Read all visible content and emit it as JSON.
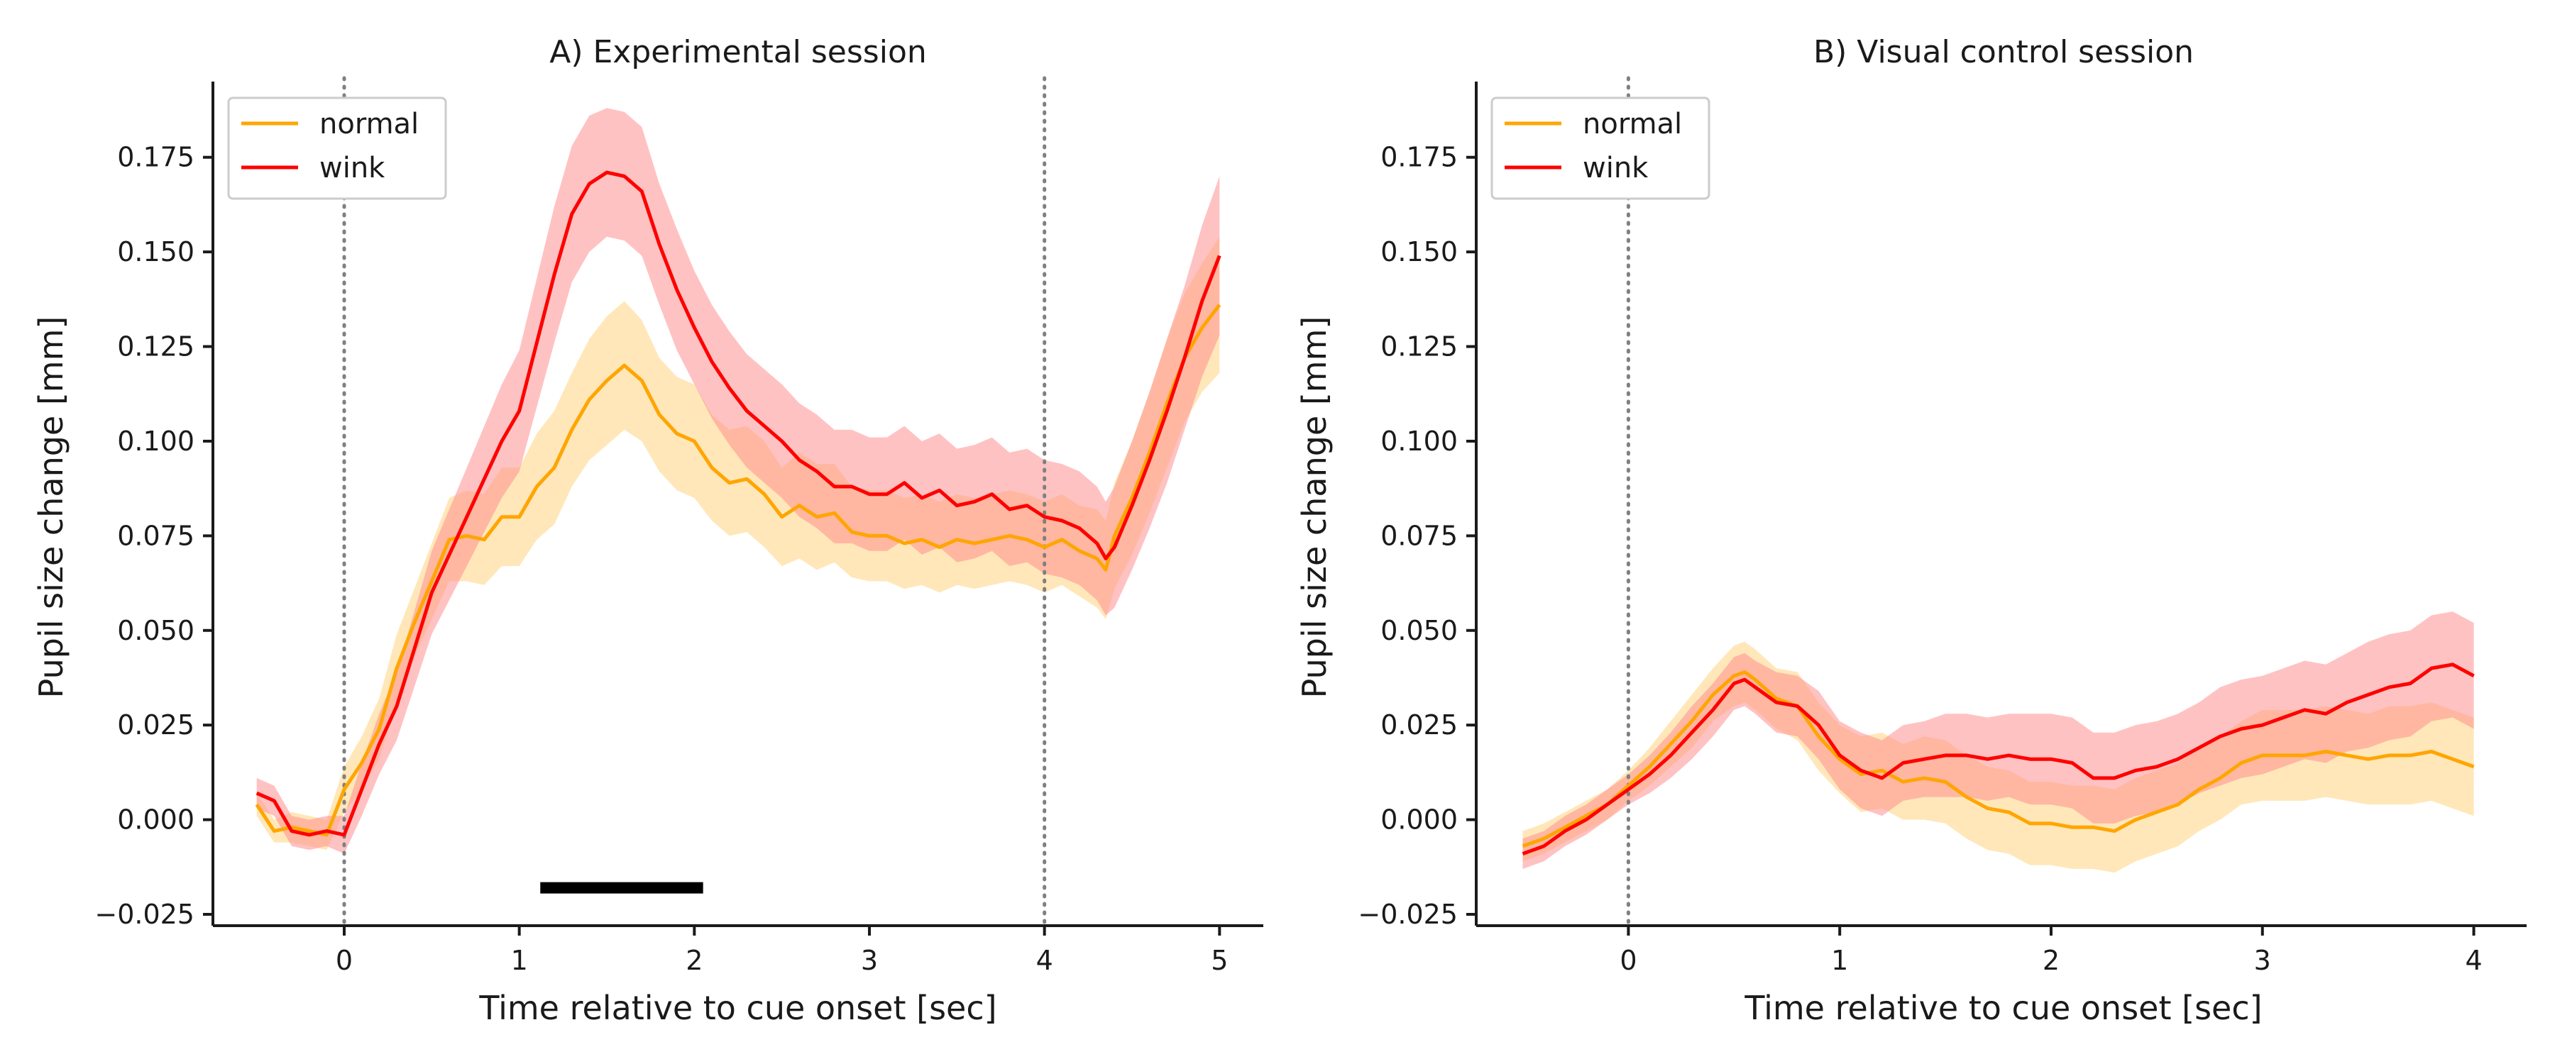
{
  "colors": {
    "normal": "#ffa500",
    "wink": "#ff0000",
    "normal_band": "#ffe3ad",
    "wink_band": "#ff9090",
    "marker": "#000000",
    "reference_line": "#808080"
  },
  "chart_data": [
    {
      "type": "line",
      "title": "A) Experimental session",
      "xlabel": "Time relative to cue onset [sec]",
      "ylabel": "Pupil size change [mm]",
      "xlim": [
        -0.75,
        5.25
      ],
      "ylim": [
        -0.028,
        0.195
      ],
      "xticks": [
        0,
        1,
        2,
        3,
        4,
        5
      ],
      "xtick_labels": [
        "0",
        "1",
        "2",
        "3",
        "4",
        "5"
      ],
      "yticks": [
        -0.025,
        0,
        0.025,
        0.05,
        0.075,
        0.1,
        0.125,
        0.15,
        0.175
      ],
      "ytick_labels": [
        "−0.025",
        "0.000",
        "0.025",
        "0.050",
        "0.075",
        "0.100",
        "0.125",
        "0.150",
        "0.175"
      ],
      "grid": false,
      "legend_position": "top-left",
      "vlines": [
        0,
        4
      ],
      "significance_bar": {
        "x_start": 1.12,
        "x_end": 2.05,
        "y": -0.018
      },
      "series": [
        {
          "name": "normal",
          "color_key": "normal",
          "x": [
            -0.5,
            -0.4,
            -0.3,
            -0.2,
            -0.1,
            0.0,
            0.1,
            0.2,
            0.3,
            0.4,
            0.5,
            0.6,
            0.7,
            0.8,
            0.9,
            1.0,
            1.1,
            1.2,
            1.3,
            1.4,
            1.5,
            1.6,
            1.7,
            1.8,
            1.9,
            2.0,
            2.1,
            2.2,
            2.3,
            2.4,
            2.5,
            2.6,
            2.7,
            2.8,
            2.9,
            3.0,
            3.1,
            3.2,
            3.3,
            3.4,
            3.5,
            3.6,
            3.7,
            3.8,
            3.9,
            4.0,
            4.1,
            4.2,
            4.3,
            4.35,
            4.4,
            4.5,
            4.6,
            4.7,
            4.8,
            4.9,
            5.0
          ],
          "y": [
            0.004,
            -0.003,
            -0.002,
            -0.003,
            -0.004,
            0.008,
            0.015,
            0.024,
            0.04,
            0.052,
            0.063,
            0.074,
            0.075,
            0.074,
            0.08,
            0.08,
            0.088,
            0.093,
            0.103,
            0.111,
            0.116,
            0.12,
            0.116,
            0.107,
            0.102,
            0.1,
            0.093,
            0.089,
            0.09,
            0.086,
            0.08,
            0.083,
            0.08,
            0.081,
            0.076,
            0.075,
            0.075,
            0.073,
            0.074,
            0.072,
            0.074,
            0.073,
            0.074,
            0.075,
            0.074,
            0.072,
            0.074,
            0.071,
            0.069,
            0.066,
            0.075,
            0.085,
            0.097,
            0.11,
            0.122,
            0.13,
            0.136
          ],
          "lower": [
            0.001,
            -0.006,
            -0.006,
            -0.007,
            -0.008,
            0.002,
            0.008,
            0.016,
            0.031,
            0.043,
            0.053,
            0.063,
            0.063,
            0.062,
            0.067,
            0.067,
            0.074,
            0.078,
            0.088,
            0.095,
            0.099,
            0.103,
            0.1,
            0.092,
            0.087,
            0.085,
            0.079,
            0.075,
            0.076,
            0.072,
            0.067,
            0.069,
            0.066,
            0.068,
            0.064,
            0.063,
            0.063,
            0.061,
            0.062,
            0.06,
            0.062,
            0.061,
            0.062,
            0.063,
            0.062,
            0.06,
            0.062,
            0.059,
            0.056,
            0.053,
            0.061,
            0.07,
            0.081,
            0.093,
            0.105,
            0.113,
            0.118
          ],
          "upper": [
            0.007,
            0.0,
            0.002,
            0.001,
            0.0,
            0.014,
            0.022,
            0.032,
            0.049,
            0.061,
            0.073,
            0.085,
            0.087,
            0.086,
            0.093,
            0.093,
            0.102,
            0.108,
            0.118,
            0.127,
            0.133,
            0.137,
            0.132,
            0.122,
            0.117,
            0.115,
            0.107,
            0.103,
            0.104,
            0.1,
            0.093,
            0.097,
            0.094,
            0.094,
            0.088,
            0.087,
            0.087,
            0.085,
            0.086,
            0.084,
            0.086,
            0.085,
            0.086,
            0.087,
            0.086,
            0.084,
            0.086,
            0.083,
            0.082,
            0.079,
            0.089,
            0.1,
            0.113,
            0.127,
            0.139,
            0.147,
            0.154
          ]
        },
        {
          "name": "wink",
          "color_key": "wink",
          "x": [
            -0.5,
            -0.4,
            -0.3,
            -0.2,
            -0.1,
            0.0,
            0.1,
            0.2,
            0.3,
            0.4,
            0.5,
            0.6,
            0.7,
            0.8,
            0.9,
            1.0,
            1.1,
            1.2,
            1.3,
            1.4,
            1.5,
            1.6,
            1.7,
            1.8,
            1.9,
            2.0,
            2.1,
            2.2,
            2.3,
            2.4,
            2.5,
            2.6,
            2.7,
            2.8,
            2.9,
            3.0,
            3.1,
            3.2,
            3.3,
            3.4,
            3.5,
            3.6,
            3.7,
            3.8,
            3.9,
            4.0,
            4.1,
            4.2,
            4.3,
            4.35,
            4.4,
            4.5,
            4.6,
            4.7,
            4.8,
            4.9,
            5.0
          ],
          "y": [
            0.007,
            0.005,
            -0.003,
            -0.004,
            -0.003,
            -0.004,
            0.008,
            0.02,
            0.03,
            0.045,
            0.06,
            0.07,
            0.08,
            0.09,
            0.1,
            0.108,
            0.126,
            0.144,
            0.16,
            0.168,
            0.171,
            0.17,
            0.166,
            0.152,
            0.14,
            0.13,
            0.121,
            0.114,
            0.108,
            0.104,
            0.1,
            0.095,
            0.092,
            0.088,
            0.088,
            0.086,
            0.086,
            0.089,
            0.085,
            0.087,
            0.083,
            0.084,
            0.086,
            0.082,
            0.083,
            0.08,
            0.079,
            0.077,
            0.073,
            0.069,
            0.072,
            0.083,
            0.095,
            0.108,
            0.122,
            0.137,
            0.149
          ],
          "lower": [
            0.003,
            0.001,
            -0.007,
            -0.008,
            -0.007,
            -0.009,
            0.001,
            0.012,
            0.021,
            0.035,
            0.049,
            0.058,
            0.067,
            0.076,
            0.085,
            0.092,
            0.109,
            0.126,
            0.142,
            0.15,
            0.154,
            0.153,
            0.149,
            0.136,
            0.124,
            0.115,
            0.106,
            0.099,
            0.093,
            0.089,
            0.085,
            0.08,
            0.077,
            0.073,
            0.073,
            0.071,
            0.071,
            0.074,
            0.07,
            0.072,
            0.068,
            0.069,
            0.071,
            0.067,
            0.068,
            0.065,
            0.064,
            0.062,
            0.058,
            0.054,
            0.056,
            0.066,
            0.077,
            0.089,
            0.103,
            0.117,
            0.128
          ],
          "upper": [
            0.011,
            0.009,
            0.001,
            0.0,
            0.001,
            0.001,
            0.015,
            0.028,
            0.039,
            0.055,
            0.071,
            0.082,
            0.093,
            0.104,
            0.115,
            0.124,
            0.143,
            0.162,
            0.178,
            0.186,
            0.188,
            0.187,
            0.183,
            0.168,
            0.156,
            0.145,
            0.136,
            0.129,
            0.123,
            0.119,
            0.115,
            0.11,
            0.107,
            0.103,
            0.103,
            0.101,
            0.101,
            0.104,
            0.1,
            0.102,
            0.098,
            0.099,
            0.101,
            0.097,
            0.098,
            0.095,
            0.094,
            0.092,
            0.088,
            0.084,
            0.088,
            0.1,
            0.113,
            0.127,
            0.141,
            0.157,
            0.17
          ]
        }
      ]
    },
    {
      "type": "line",
      "title": "B) Visual control session",
      "xlabel": "Time relative to cue onset [sec]",
      "ylabel": "Pupil size change [mm]",
      "xlim": [
        -0.72,
        4.25
      ],
      "ylim": [
        -0.028,
        0.195
      ],
      "xticks": [
        0,
        1,
        2,
        3,
        4
      ],
      "xtick_labels": [
        "0",
        "1",
        "2",
        "3",
        "4"
      ],
      "yticks": [
        -0.025,
        0,
        0.025,
        0.05,
        0.075,
        0.1,
        0.125,
        0.15,
        0.175
      ],
      "ytick_labels": [
        "−0.025",
        "0.000",
        "0.025",
        "0.050",
        "0.075",
        "0.100",
        "0.125",
        "0.150",
        "0.175"
      ],
      "grid": false,
      "legend_position": "top-left",
      "vlines": [
        0
      ],
      "series": [
        {
          "name": "normal",
          "color_key": "normal",
          "x": [
            -0.5,
            -0.4,
            -0.3,
            -0.2,
            -0.1,
            0.0,
            0.1,
            0.2,
            0.3,
            0.4,
            0.5,
            0.55,
            0.6,
            0.7,
            0.8,
            0.9,
            1.0,
            1.1,
            1.2,
            1.3,
            1.4,
            1.5,
            1.6,
            1.7,
            1.8,
            1.9,
            2.0,
            2.1,
            2.2,
            2.3,
            2.4,
            2.5,
            2.6,
            2.7,
            2.8,
            2.9,
            3.0,
            3.1,
            3.2,
            3.3,
            3.4,
            3.5,
            3.6,
            3.7,
            3.8,
            3.9,
            4.0
          ],
          "y": [
            -0.007,
            -0.005,
            -0.002,
            0.001,
            0.004,
            0.009,
            0.014,
            0.02,
            0.026,
            0.033,
            0.038,
            0.039,
            0.037,
            0.032,
            0.03,
            0.022,
            0.016,
            0.012,
            0.013,
            0.01,
            0.011,
            0.01,
            0.006,
            0.003,
            0.002,
            -0.001,
            -0.001,
            -0.002,
            -0.002,
            -0.003,
            0.0,
            0.002,
            0.004,
            0.008,
            0.011,
            0.015,
            0.017,
            0.017,
            0.017,
            0.018,
            0.017,
            0.016,
            0.017,
            0.017,
            0.018,
            0.016,
            0.014
          ],
          "lower": [
            -0.011,
            -0.009,
            -0.006,
            -0.003,
            0.0,
            0.005,
            0.009,
            0.014,
            0.019,
            0.026,
            0.03,
            0.031,
            0.029,
            0.024,
            0.021,
            0.013,
            0.007,
            0.002,
            0.003,
            0.0,
            0.0,
            -0.001,
            -0.005,
            -0.008,
            -0.009,
            -0.012,
            -0.012,
            -0.013,
            -0.013,
            -0.014,
            -0.011,
            -0.009,
            -0.007,
            -0.003,
            0.0,
            0.004,
            0.005,
            0.005,
            0.005,
            0.006,
            0.005,
            0.004,
            0.004,
            0.004,
            0.005,
            0.003,
            0.001
          ],
          "upper": [
            -0.003,
            -0.001,
            0.002,
            0.005,
            0.008,
            0.013,
            0.019,
            0.026,
            0.033,
            0.04,
            0.046,
            0.047,
            0.045,
            0.04,
            0.039,
            0.031,
            0.025,
            0.022,
            0.023,
            0.02,
            0.022,
            0.021,
            0.017,
            0.014,
            0.013,
            0.01,
            0.01,
            0.009,
            0.009,
            0.008,
            0.011,
            0.013,
            0.015,
            0.019,
            0.022,
            0.026,
            0.029,
            0.029,
            0.029,
            0.03,
            0.029,
            0.028,
            0.03,
            0.03,
            0.031,
            0.029,
            0.027
          ]
        },
        {
          "name": "wink",
          "color_key": "wink",
          "x": [
            -0.5,
            -0.4,
            -0.3,
            -0.2,
            -0.1,
            0.0,
            0.1,
            0.2,
            0.3,
            0.4,
            0.5,
            0.55,
            0.6,
            0.7,
            0.8,
            0.9,
            1.0,
            1.1,
            1.2,
            1.3,
            1.4,
            1.5,
            1.6,
            1.7,
            1.8,
            1.9,
            2.0,
            2.1,
            2.2,
            2.3,
            2.4,
            2.5,
            2.6,
            2.7,
            2.8,
            2.9,
            3.0,
            3.1,
            3.2,
            3.3,
            3.4,
            3.5,
            3.6,
            3.7,
            3.8,
            3.9,
            4.0
          ],
          "y": [
            -0.009,
            -0.007,
            -0.003,
            0.0,
            0.004,
            0.008,
            0.012,
            0.017,
            0.023,
            0.029,
            0.036,
            0.037,
            0.035,
            0.031,
            0.03,
            0.025,
            0.017,
            0.013,
            0.011,
            0.015,
            0.016,
            0.017,
            0.017,
            0.016,
            0.017,
            0.016,
            0.016,
            0.015,
            0.011,
            0.011,
            0.013,
            0.014,
            0.016,
            0.019,
            0.022,
            0.024,
            0.025,
            0.027,
            0.029,
            0.028,
            0.031,
            0.033,
            0.035,
            0.036,
            0.04,
            0.041,
            0.038
          ],
          "lower": [
            -0.013,
            -0.011,
            -0.007,
            -0.004,
            0.0,
            0.004,
            0.007,
            0.011,
            0.016,
            0.022,
            0.029,
            0.03,
            0.028,
            0.023,
            0.022,
            0.016,
            0.008,
            0.003,
            0.001,
            0.005,
            0.006,
            0.006,
            0.006,
            0.005,
            0.006,
            0.004,
            0.004,
            0.003,
            -0.001,
            -0.001,
            0.001,
            0.002,
            0.004,
            0.007,
            0.009,
            0.011,
            0.012,
            0.014,
            0.016,
            0.015,
            0.018,
            0.019,
            0.021,
            0.022,
            0.026,
            0.027,
            0.024
          ],
          "upper": [
            -0.005,
            -0.003,
            0.001,
            0.004,
            0.008,
            0.012,
            0.017,
            0.023,
            0.03,
            0.036,
            0.043,
            0.044,
            0.042,
            0.039,
            0.038,
            0.034,
            0.026,
            0.023,
            0.021,
            0.025,
            0.026,
            0.028,
            0.028,
            0.027,
            0.028,
            0.028,
            0.028,
            0.027,
            0.023,
            0.023,
            0.025,
            0.026,
            0.028,
            0.031,
            0.035,
            0.037,
            0.038,
            0.04,
            0.042,
            0.041,
            0.044,
            0.047,
            0.049,
            0.05,
            0.054,
            0.055,
            0.052
          ]
        }
      ]
    }
  ]
}
